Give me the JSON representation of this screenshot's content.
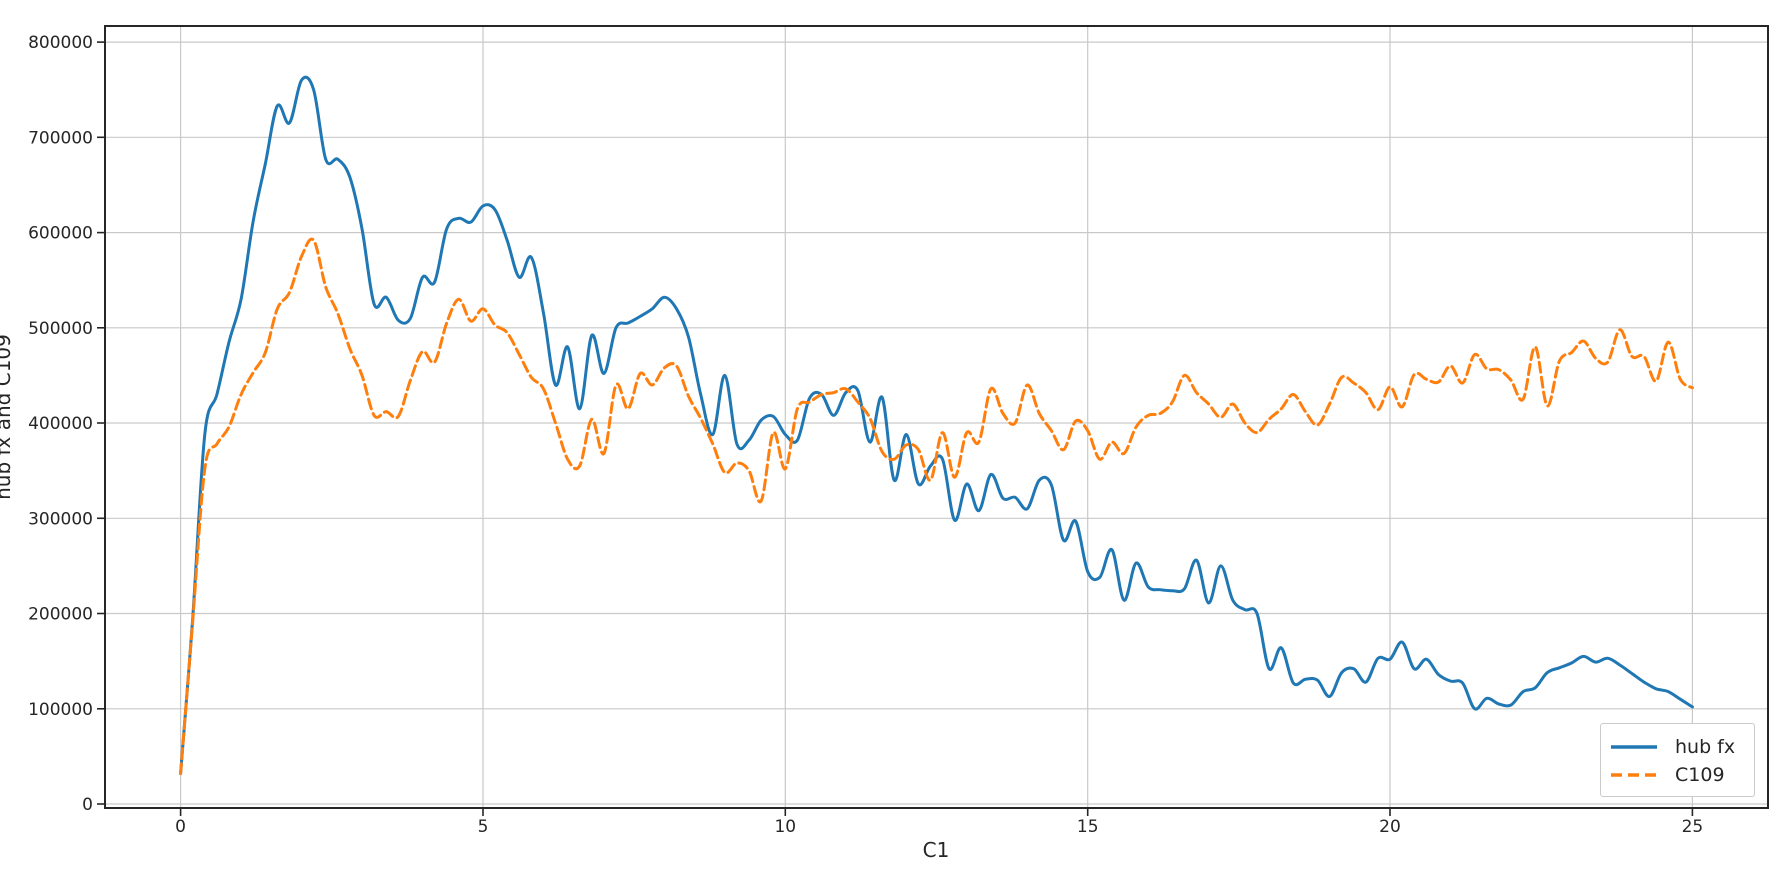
{
  "chart_data": {
    "type": "line",
    "title": "",
    "xlabel": "C1",
    "ylabel": "hub fx and C109",
    "x_ticks": [
      0,
      5,
      10,
      15,
      20,
      25
    ],
    "y_ticks": [
      0,
      100000,
      200000,
      300000,
      400000,
      500000,
      600000,
      700000,
      800000
    ],
    "xlim": [
      -1.25,
      26.25
    ],
    "ylim": [
      -4200,
      816900
    ],
    "grid": true,
    "legend": {
      "position": "lower right",
      "entries": [
        "hub fx",
        "C109"
      ]
    },
    "x_start": 0,
    "x_step": 0.2,
    "series": [
      {
        "name": "hub fx",
        "color": "#1f77b4",
        "style": "solid",
        "values": [
          32000,
          195000,
          388000,
          430000,
          485000,
          530000,
          612000,
          672000,
          733000,
          715000,
          760000,
          750000,
          677000,
          677000,
          658000,
          604000,
          525000,
          532000,
          508000,
          510000,
          553000,
          548000,
          604000,
          615000,
          611000,
          628000,
          624000,
          592000,
          553000,
          574000,
          516000,
          440000,
          480000,
          415000,
          492000,
          452000,
          500000,
          505000,
          512000,
          520000,
          532000,
          520000,
          490000,
          430000,
          388000,
          450000,
          378000,
          382000,
          403000,
          407000,
          388000,
          382000,
          426000,
          430000,
          408000,
          432000,
          434000,
          380000,
          427000,
          340000,
          388000,
          336000,
          355000,
          362000,
          298000,
          336000,
          308000,
          346000,
          321000,
          322000,
          310000,
          340000,
          335000,
          277000,
          297000,
          244000,
          238000,
          267000,
          214000,
          253000,
          228000,
          225000,
          224000,
          226000,
          256000,
          211000,
          250000,
          214000,
          204000,
          200000,
          142000,
          164000,
          127000,
          131000,
          130000,
          113000,
          138000,
          142000,
          128000,
          153000,
          152000,
          170000,
          142000,
          152000,
          136000,
          129000,
          127000,
          100000,
          111000,
          105000,
          104000,
          118000,
          122000,
          138000,
          143000,
          148000,
          155000,
          149000,
          153000,
          146000,
          137000,
          128000,
          121000,
          118000,
          110000,
          102000
        ]
      },
      {
        "name": "C109",
        "color": "#ff7f0e",
        "style": "dashed",
        "values": [
          32000,
          192000,
          352000,
          378000,
          396000,
          430000,
          453000,
          474000,
          520000,
          537000,
          575000,
          592000,
          543000,
          515000,
          478000,
          450000,
          408000,
          412000,
          407000,
          445000,
          475000,
          464000,
          505000,
          530000,
          507000,
          520000,
          503000,
          495000,
          472000,
          448000,
          436000,
          400000,
          362000,
          355000,
          404000,
          368000,
          440000,
          415000,
          452000,
          440000,
          458000,
          460000,
          428000,
          405000,
          378000,
          348000,
          358000,
          350000,
          318000,
          390000,
          352000,
          415000,
          422000,
          430000,
          432000,
          436000,
          422000,
          405000,
          370000,
          362000,
          377000,
          372000,
          340000,
          390000,
          343000,
          390000,
          380000,
          436000,
          410000,
          400000,
          440000,
          410000,
          392000,
          372000,
          402000,
          392000,
          362000,
          380000,
          368000,
          396000,
          408000,
          410000,
          422000,
          450000,
          432000,
          420000,
          406000,
          420000,
          400000,
          390000,
          404000,
          415000,
          430000,
          412000,
          398000,
          420000,
          448000,
          442000,
          432000,
          414000,
          438000,
          417000,
          451000,
          446000,
          443000,
          460000,
          442000,
          472000,
          457000,
          456000,
          445000,
          425000,
          480000,
          418000,
          465000,
          474000,
          486000,
          468000,
          464000,
          498000,
          470000,
          470000,
          444000,
          485000,
          446000,
          437000
        ]
      }
    ]
  },
  "style_tokens": {
    "spine_color": "#262626",
    "grid_color": "#c9c9c9",
    "tick_label_color": "#262626",
    "background": "#ffffff"
  }
}
